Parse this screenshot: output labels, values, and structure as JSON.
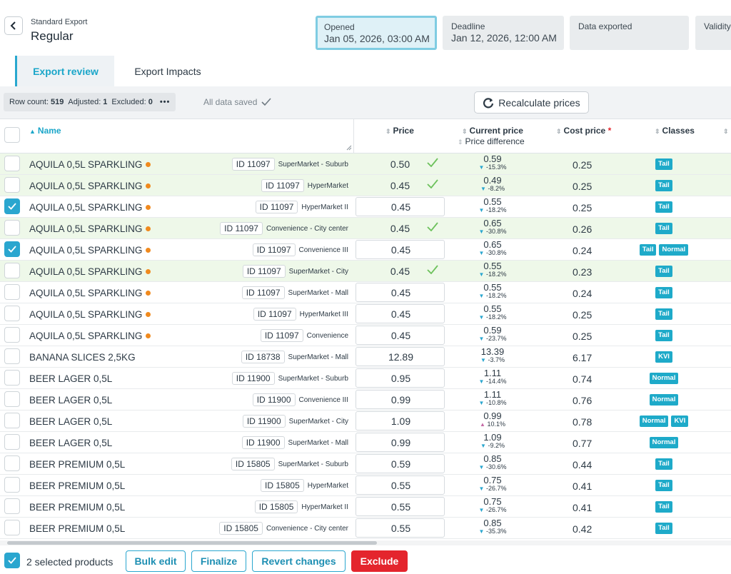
{
  "header": {
    "breadcrumb": "Standard Export",
    "title": "Regular",
    "stages": [
      {
        "label": "Opened",
        "value": "Jan 05, 2026, 03:00 AM",
        "active": true
      },
      {
        "label": "Deadline",
        "value": "Jan 12, 2026, 12:00 AM",
        "active": false
      },
      {
        "label": "Data exported",
        "value": "",
        "active": false
      },
      {
        "label": "Validity",
        "value": "",
        "active": false
      }
    ]
  },
  "tabs": [
    {
      "label": "Export review",
      "active": true
    },
    {
      "label": "Export Impacts",
      "active": false
    }
  ],
  "toolbar": {
    "row_count_label": "Row count:",
    "row_count": "519",
    "adjusted_label": "Adjusted:",
    "adjusted": "1",
    "excluded_label": "Excluded:",
    "excluded": "0",
    "more": "•••",
    "saved_status": "All data saved",
    "recalculate_label": "Recalculate prices"
  },
  "columns": {
    "name": "Name",
    "price": "Price",
    "current_price": "Current price",
    "price_difference": "Price difference",
    "cost_price": "Cost price",
    "cost_required": "*",
    "classes": "Classes"
  },
  "rows": [
    {
      "name": "AQUILA 0,5L SPARKLING",
      "flag": true,
      "id": "ID 11097",
      "store": "SuperMarket - Suburb",
      "price": "0.50",
      "status": "accepted",
      "selected": false,
      "current": "0.59",
      "diff": "-15.3%",
      "dir": "down",
      "cost": "0.25",
      "classes": [
        "Tail"
      ]
    },
    {
      "name": "AQUILA 0,5L SPARKLING",
      "flag": true,
      "id": "ID 11097",
      "store": "HyperMarket",
      "price": "0.45",
      "status": "accepted",
      "selected": false,
      "current": "0.49",
      "diff": "-8.2%",
      "dir": "down",
      "cost": "0.25",
      "classes": [
        "Tail"
      ]
    },
    {
      "name": "AQUILA 0,5L SPARKLING",
      "flag": true,
      "id": "ID 11097",
      "store": "HyperMarket II",
      "price": "0.45",
      "status": "editable",
      "selected": true,
      "current": "0.55",
      "diff": "-18.2%",
      "dir": "down",
      "cost": "0.25",
      "classes": [
        "Tail"
      ]
    },
    {
      "name": "AQUILA 0,5L SPARKLING",
      "flag": true,
      "id": "ID 11097",
      "store": "Convenience - City center",
      "price": "0.45",
      "status": "accepted",
      "selected": false,
      "current": "0.65",
      "diff": "-30.8%",
      "dir": "down",
      "cost": "0.26",
      "classes": [
        "Tail"
      ]
    },
    {
      "name": "AQUILA 0,5L SPARKLING",
      "flag": true,
      "id": "ID 11097",
      "store": "Convenience III",
      "price": "0.45",
      "status": "editable",
      "selected": true,
      "current": "0.65",
      "diff": "-30.8%",
      "dir": "down",
      "cost": "0.24",
      "classes": [
        "Tail",
        "Normal"
      ]
    },
    {
      "name": "AQUILA 0,5L SPARKLING",
      "flag": true,
      "id": "ID 11097",
      "store": "SuperMarket - City",
      "price": "0.45",
      "status": "accepted",
      "selected": false,
      "current": "0.55",
      "diff": "-18.2%",
      "dir": "down",
      "cost": "0.23",
      "classes": [
        "Tail"
      ]
    },
    {
      "name": "AQUILA 0,5L SPARKLING",
      "flag": true,
      "id": "ID 11097",
      "store": "SuperMarket - Mall",
      "price": "0.45",
      "status": "editable",
      "selected": false,
      "current": "0.55",
      "diff": "-18.2%",
      "dir": "down",
      "cost": "0.24",
      "classes": [
        "Tail"
      ]
    },
    {
      "name": "AQUILA 0,5L SPARKLING",
      "flag": true,
      "id": "ID 11097",
      "store": "HyperMarket III",
      "price": "0.45",
      "status": "editable",
      "selected": false,
      "current": "0.55",
      "diff": "-18.2%",
      "dir": "down",
      "cost": "0.25",
      "classes": [
        "Tail"
      ]
    },
    {
      "name": "AQUILA 0,5L SPARKLING",
      "flag": true,
      "id": "ID 11097",
      "store": "Convenience",
      "price": "0.45",
      "status": "editable",
      "selected": false,
      "current": "0.59",
      "diff": "-23.7%",
      "dir": "down",
      "cost": "0.25",
      "classes": [
        "Tail"
      ]
    },
    {
      "name": "BANANA SLICES 2,5KG",
      "flag": false,
      "id": "ID 18738",
      "store": "SuperMarket - Mall",
      "price": "12.89",
      "status": "editable",
      "selected": false,
      "current": "13.39",
      "diff": "-3.7%",
      "dir": "down",
      "cost": "6.17",
      "classes": [
        "KVI"
      ]
    },
    {
      "name": "BEER LAGER 0,5L",
      "flag": false,
      "id": "ID 11900",
      "store": "SuperMarket - Suburb",
      "price": "0.95",
      "status": "editable",
      "selected": false,
      "current": "1.11",
      "diff": "-14.4%",
      "dir": "down",
      "cost": "0.74",
      "classes": [
        "Normal"
      ]
    },
    {
      "name": "BEER LAGER 0,5L",
      "flag": false,
      "id": "ID 11900",
      "store": "Convenience III",
      "price": "0.99",
      "status": "editable",
      "selected": false,
      "current": "1.11",
      "diff": "-10.8%",
      "dir": "down",
      "cost": "0.76",
      "classes": [
        "Normal"
      ]
    },
    {
      "name": "BEER LAGER 0,5L",
      "flag": false,
      "id": "ID 11900",
      "store": "SuperMarket - City",
      "price": "1.09",
      "status": "editable",
      "selected": false,
      "current": "0.99",
      "diff": "10.1%",
      "dir": "up",
      "cost": "0.78",
      "classes": [
        "Normal",
        "KVI"
      ]
    },
    {
      "name": "BEER LAGER 0,5L",
      "flag": false,
      "id": "ID 11900",
      "store": "SuperMarket - Mall",
      "price": "0.99",
      "status": "editable",
      "selected": false,
      "current": "1.09",
      "diff": "-9.2%",
      "dir": "down",
      "cost": "0.77",
      "classes": [
        "Normal"
      ]
    },
    {
      "name": "BEER PREMIUM 0,5L",
      "flag": false,
      "id": "ID 15805",
      "store": "SuperMarket - Suburb",
      "price": "0.59",
      "status": "editable",
      "selected": false,
      "current": "0.85",
      "diff": "-30.6%",
      "dir": "down",
      "cost": "0.44",
      "classes": [
        "Tail"
      ]
    },
    {
      "name": "BEER PREMIUM 0,5L",
      "flag": false,
      "id": "ID 15805",
      "store": "HyperMarket",
      "price": "0.55",
      "status": "editable",
      "selected": false,
      "current": "0.75",
      "diff": "-26.7%",
      "dir": "down",
      "cost": "0.41",
      "classes": [
        "Tail"
      ]
    },
    {
      "name": "BEER PREMIUM 0,5L",
      "flag": false,
      "id": "ID 15805",
      "store": "HyperMarket II",
      "price": "0.55",
      "status": "editable",
      "selected": false,
      "current": "0.75",
      "diff": "-26.7%",
      "dir": "down",
      "cost": "0.41",
      "classes": [
        "Tail"
      ]
    },
    {
      "name": "BEER PREMIUM 0,5L",
      "flag": false,
      "id": "ID 15805",
      "store": "Convenience - City center",
      "price": "0.55",
      "status": "editable",
      "selected": false,
      "current": "0.85",
      "diff": "-35.3%",
      "dir": "down",
      "cost": "0.42",
      "classes": [
        "Tail"
      ]
    }
  ],
  "footer": {
    "selected_label": "2 selected products",
    "bulk_edit": "Bulk edit",
    "finalize": "Finalize",
    "revert": "Revert changes",
    "exclude": "Exclude"
  },
  "colors": {
    "accent": "#2aa6cf",
    "accepted_row": "#eef8e9",
    "danger": "#e4252d",
    "flag": "#f08a1e",
    "badge": "#1eaac9"
  }
}
